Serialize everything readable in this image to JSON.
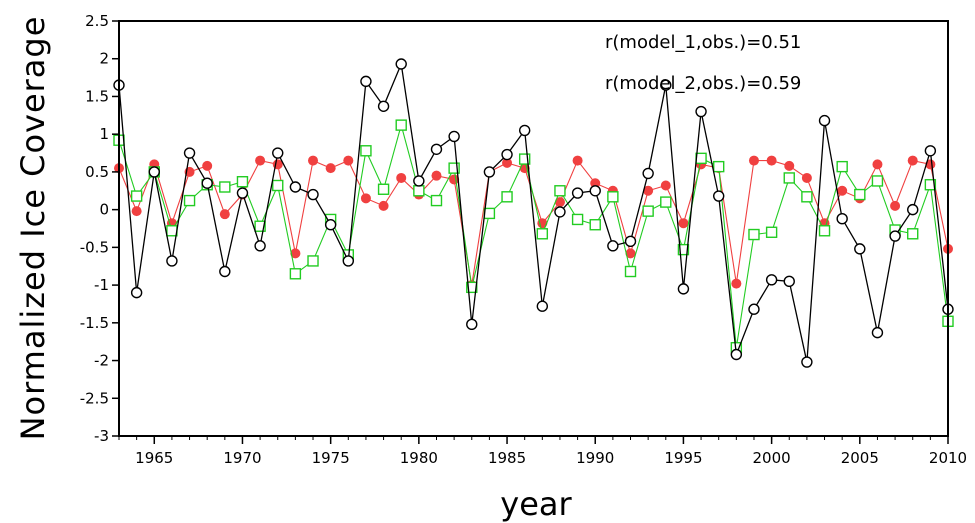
{
  "chart_data": {
    "type": "line",
    "xlabel": "year",
    "ylabel": "Normalized Ice Coverage",
    "xlim": [
      1963,
      2010
    ],
    "ylim": [
      -3,
      2.5
    ],
    "x_ticks": [
      1965,
      1970,
      1975,
      1980,
      1985,
      1990,
      1995,
      2000,
      2005,
      2010
    ],
    "y_ticks": [
      -3,
      -2.5,
      -2,
      -1.5,
      -1,
      -0.5,
      0,
      0.5,
      1,
      1.5,
      2,
      2.5
    ],
    "annotations": [
      "r(model_1,obs.)=0.51",
      "r(model_2,obs.)=0.59"
    ],
    "x": [
      1963,
      1964,
      1965,
      1966,
      1967,
      1968,
      1969,
      1970,
      1971,
      1972,
      1973,
      1974,
      1975,
      1976,
      1977,
      1978,
      1979,
      1980,
      1981,
      1982,
      1983,
      1984,
      1985,
      1986,
      1987,
      1988,
      1989,
      1990,
      1991,
      1992,
      1993,
      1994,
      1995,
      1996,
      1997,
      1998,
      1999,
      2000,
      2001,
      2002,
      2003,
      2004,
      2005,
      2006,
      2007,
      2008,
      2009,
      2010
    ],
    "series": [
      {
        "color": "#000000",
        "marker": "open-circle",
        "values": [
          1.65,
          -1.1,
          0.5,
          -0.68,
          0.75,
          0.35,
          -0.82,
          0.22,
          -0.48,
          0.75,
          0.3,
          0.2,
          -0.2,
          -0.68,
          1.7,
          1.37,
          1.93,
          0.38,
          0.8,
          0.97,
          -1.52,
          0.5,
          0.73,
          1.05,
          -1.28,
          -0.03,
          0.22,
          0.25,
          -0.48,
          -0.42,
          0.48,
          1.65,
          -1.05,
          1.3,
          0.18,
          -1.92,
          -1.32,
          -0.93,
          -0.95,
          -2.02,
          1.18,
          -0.12,
          -0.52,
          -1.63,
          -0.35,
          0.0,
          0.78,
          -1.32
        ]
      },
      {
        "color": "#f04040",
        "marker": "filled-circle",
        "values": [
          0.55,
          -0.02,
          0.6,
          -0.18,
          0.5,
          0.58,
          -0.06,
          0.2,
          0.65,
          0.6,
          -0.58,
          0.65,
          0.55,
          0.65,
          0.15,
          0.05,
          0.42,
          0.2,
          0.45,
          0.4,
          -1.0,
          0.5,
          0.62,
          0.55,
          -0.18,
          0.1,
          0.65,
          0.35,
          0.25,
          -0.58,
          0.25,
          0.32,
          -0.18,
          0.6,
          0.55,
          -0.98,
          0.65,
          0.65,
          0.58,
          0.42,
          -0.18,
          0.25,
          0.15,
          0.6,
          0.05,
          0.65,
          0.6,
          -0.52
        ]
      },
      {
        "color": "#22cc22",
        "marker": "open-square",
        "values": [
          0.92,
          0.18,
          0.5,
          -0.28,
          0.12,
          0.33,
          0.3,
          0.37,
          -0.22,
          0.32,
          -0.85,
          -0.68,
          -0.13,
          -0.6,
          0.78,
          0.27,
          1.12,
          0.25,
          0.12,
          0.55,
          -1.03,
          -0.05,
          0.17,
          0.67,
          -0.32,
          0.25,
          -0.13,
          -0.2,
          0.17,
          -0.82,
          -0.02,
          0.1,
          -0.53,
          0.68,
          0.57,
          -1.83,
          -0.33,
          -0.3,
          0.42,
          0.17,
          -0.28,
          0.57,
          0.2,
          0.38,
          -0.27,
          -0.32,
          0.33,
          -1.48
        ]
      }
    ]
  }
}
